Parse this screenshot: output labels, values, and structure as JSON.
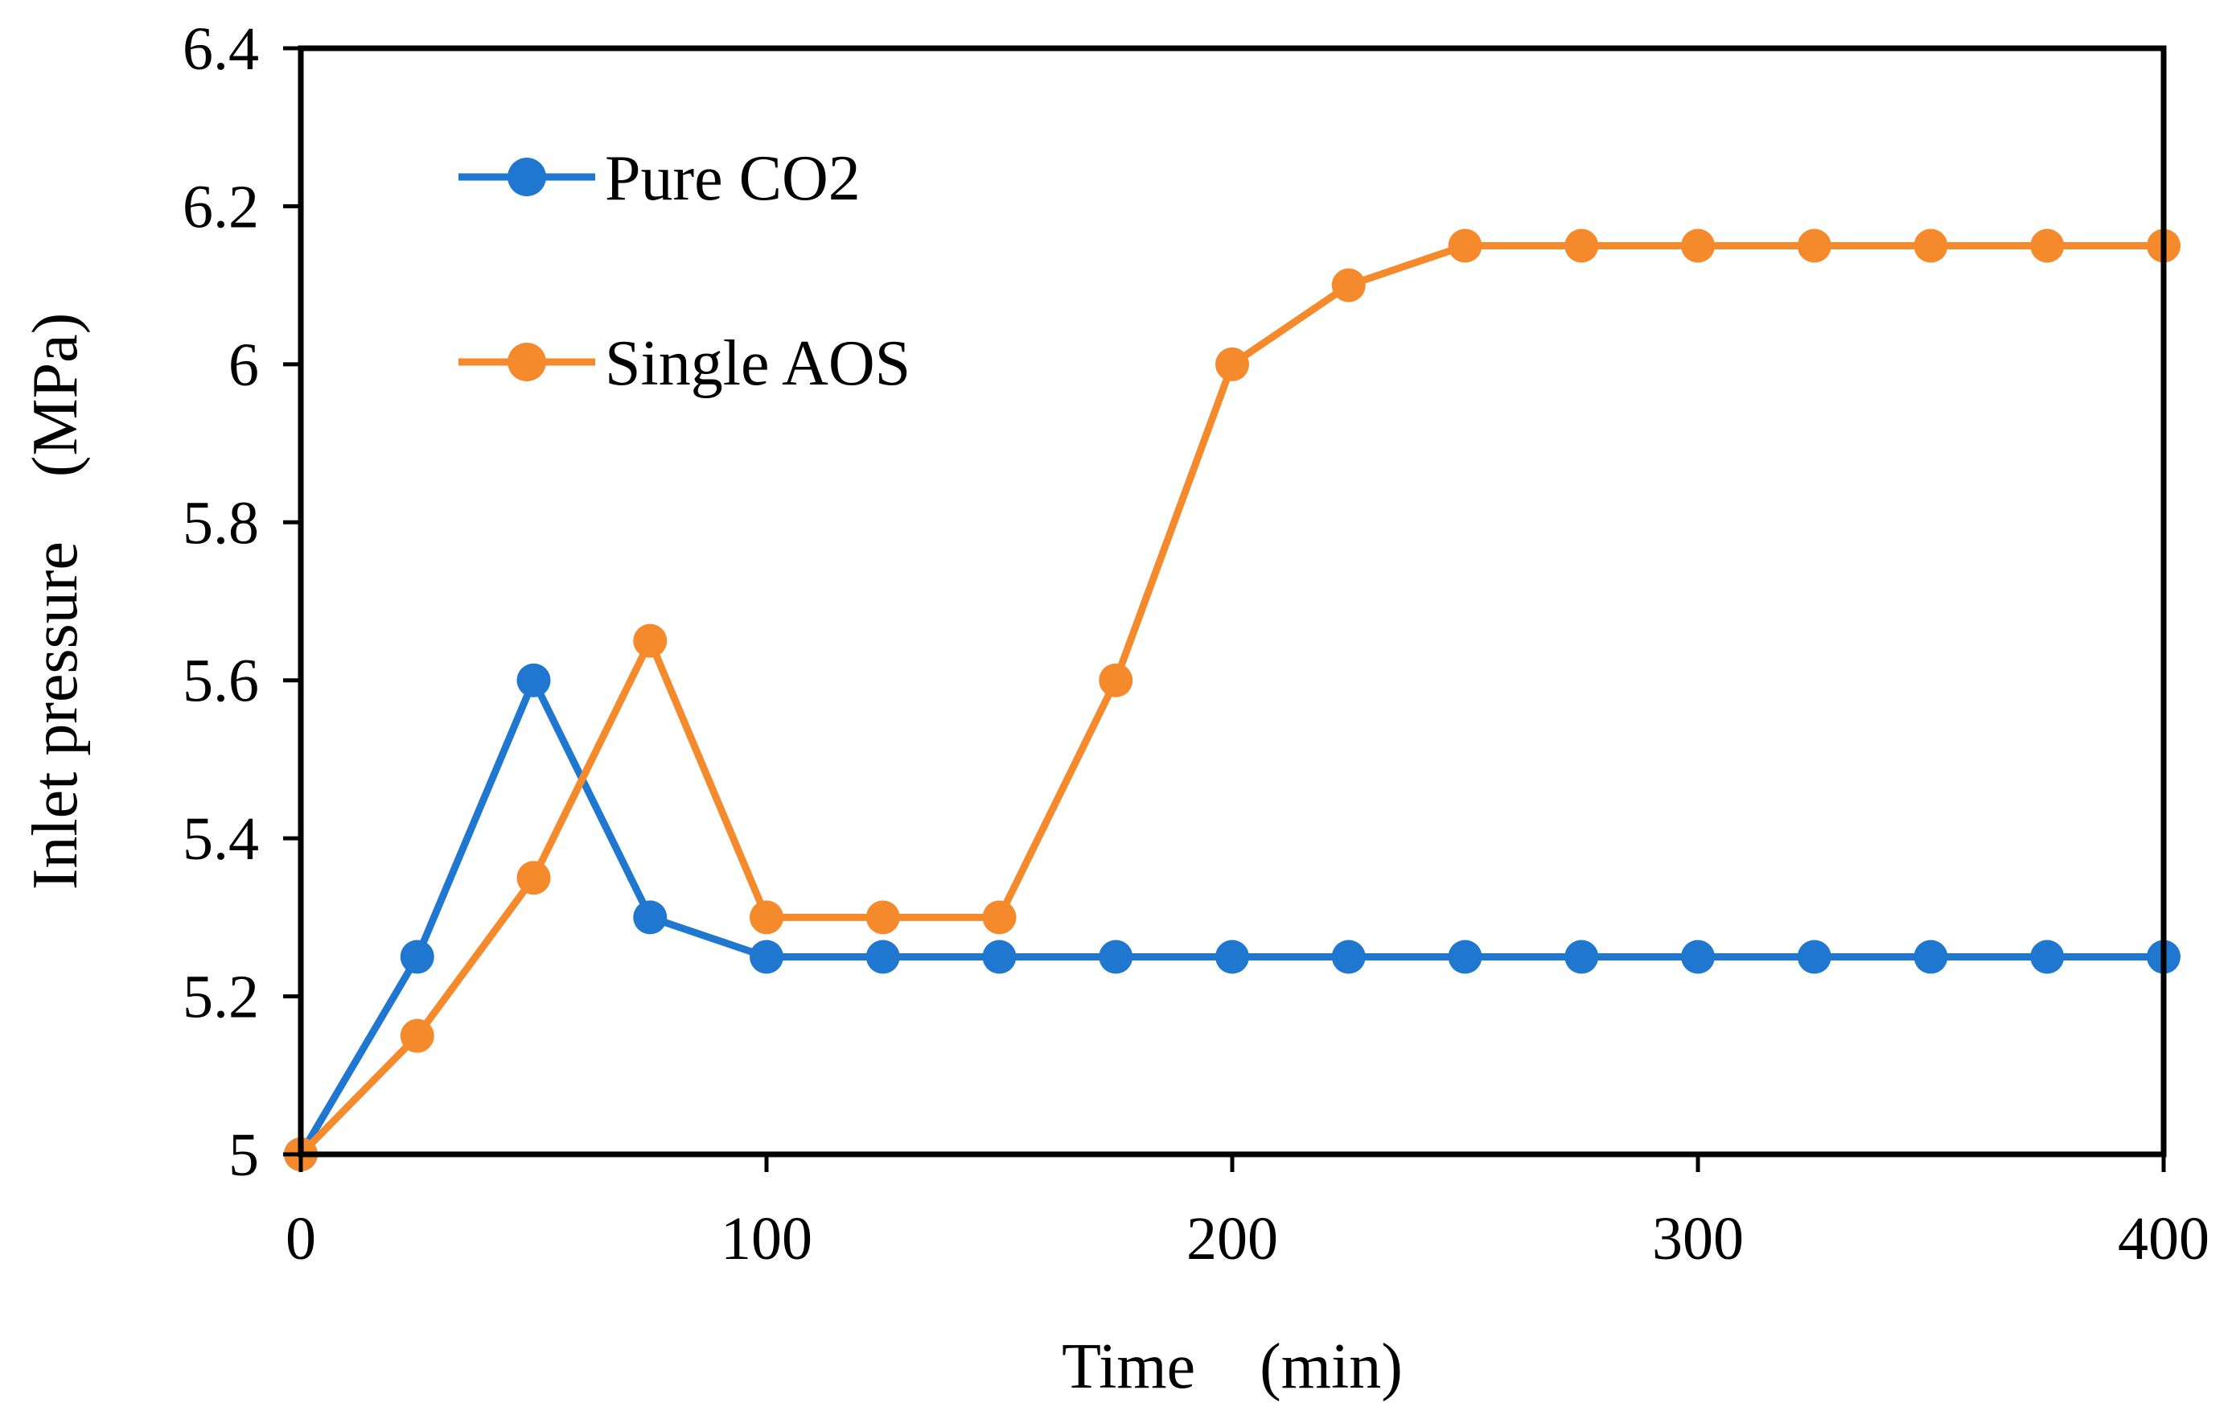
{
  "chart_data": {
    "type": "line",
    "title": "",
    "xlabel": "Time　(min)",
    "ylabel": "Inlet pressure　(MPa)",
    "xlim": [
      0,
      400
    ],
    "ylim": [
      5,
      6.4
    ],
    "xticks": [
      "0",
      "100",
      "200",
      "300",
      "400"
    ],
    "yticks": [
      "5",
      "5.2",
      "5.4",
      "5.6",
      "5.8",
      "6",
      "6.2",
      "6.4"
    ],
    "grid": false,
    "legend_position": "top-left",
    "x": [
      0,
      25,
      50,
      75,
      100,
      125,
      150,
      175,
      200,
      225,
      250,
      275,
      300,
      325,
      350,
      375,
      400
    ],
    "series": [
      {
        "name": "Pure CO2",
        "color": "#1f77cf",
        "values": [
          5.0,
          5.25,
          5.6,
          5.3,
          5.25,
          5.25,
          5.25,
          5.25,
          5.25,
          5.25,
          5.25,
          5.25,
          5.25,
          5.25,
          5.25,
          5.25,
          5.25
        ]
      },
      {
        "name": "Single AOS",
        "color": "#f58a2c",
        "values": [
          5.0,
          5.15,
          5.35,
          5.65,
          5.3,
          5.3,
          5.3,
          5.6,
          6.0,
          6.1,
          6.15,
          6.15,
          6.15,
          6.15,
          6.15,
          6.15,
          6.15
        ]
      }
    ]
  }
}
